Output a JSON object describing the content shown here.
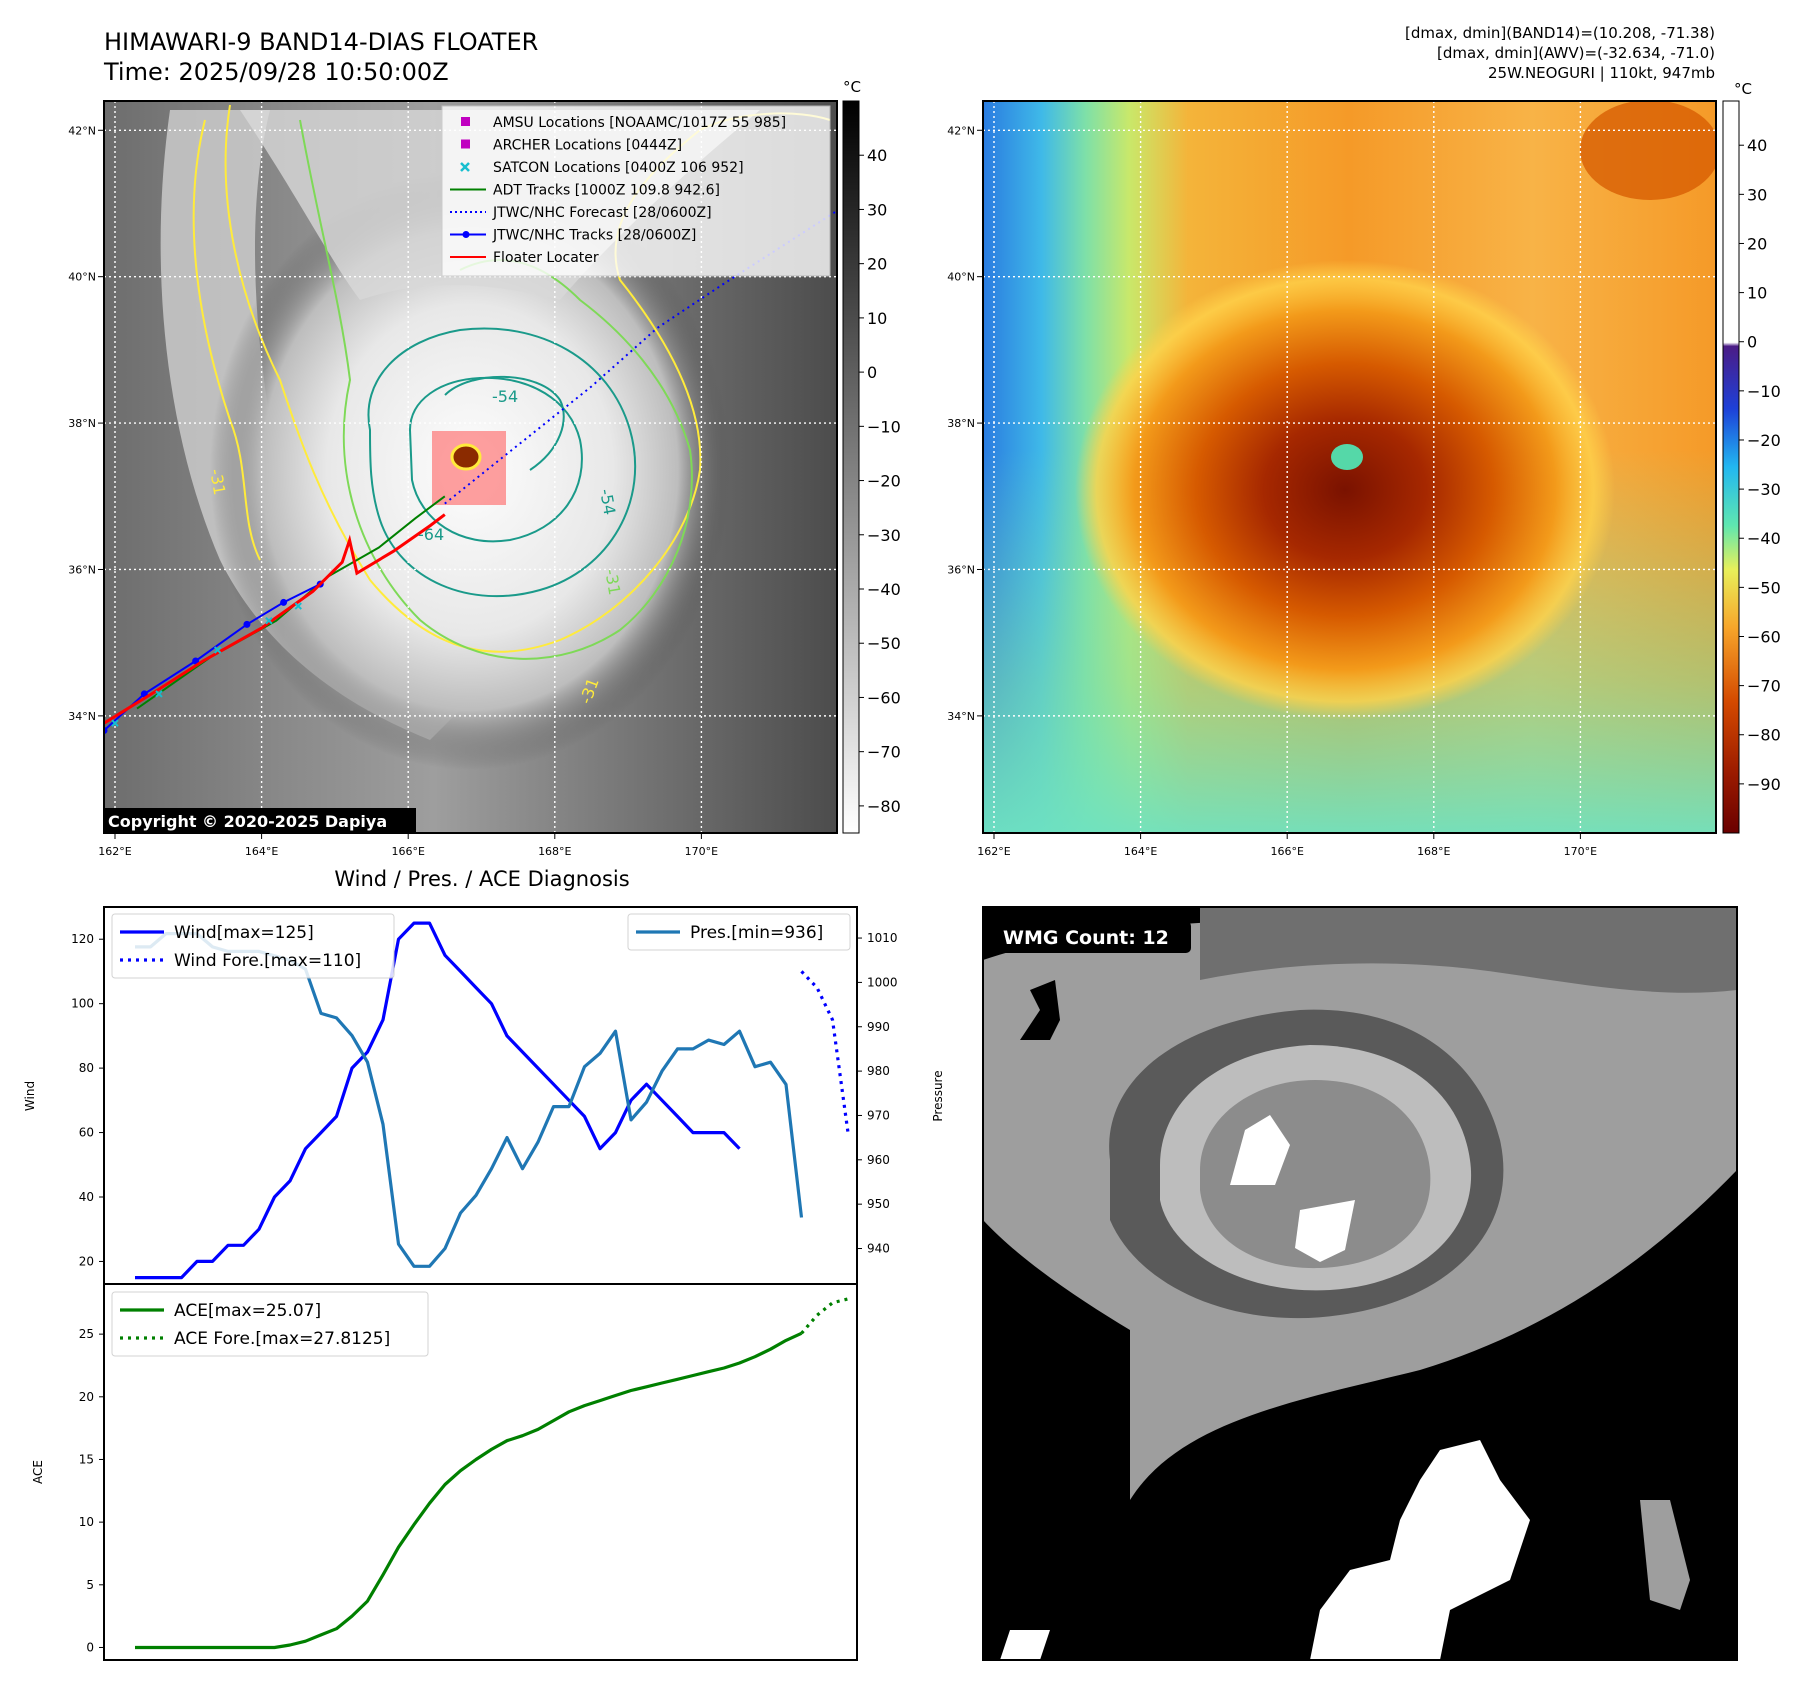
{
  "header": {
    "title": "HIMAWARI-9 BAND14-DIAS FLOATER",
    "time": "Time: 2025/09/28 10:50:00Z",
    "right_lines": [
      "[dmax, dmin](BAND14)=(10.208, -71.38)",
      "[dmax, dmin](AWV)=(-32.634, -71.0)",
      "25W.NEOGURI | 110kt, 947mb"
    ]
  },
  "map_axes": {
    "lat_ticks": [
      "42°N",
      "40°N",
      "38°N",
      "36°N",
      "34°N"
    ],
    "lat_values": [
      42,
      40,
      38,
      36,
      34
    ],
    "lon_ticks": [
      "162°E",
      "164°E",
      "166°E",
      "168°E",
      "170°E"
    ],
    "lon_values": [
      162,
      164,
      166,
      168,
      170
    ],
    "lat_range": [
      32.4,
      42.4
    ],
    "lon_range": [
      161.85,
      171.85
    ]
  },
  "ir_panel": {
    "copyright": "Copyright © 2020-2025 Dapiya",
    "colorbar_unit": "°C",
    "colorbar_ticks": [
      "40",
      "30",
      "20",
      "10",
      "0",
      "−10",
      "−20",
      "−30",
      "−40",
      "−50",
      "−60",
      "−70",
      "−80"
    ],
    "colorbar_values": [
      40,
      30,
      20,
      10,
      0,
      -10,
      -20,
      -30,
      -40,
      -50,
      -60,
      -70,
      -80
    ],
    "colorbar_range": [
      -85,
      50
    ],
    "contour_labels": [
      "-54",
      "-54",
      "-64",
      "-31",
      "-31",
      "-31"
    ],
    "legend": [
      {
        "label": "AMSU Locations [NOAAMC/1017Z 55 985]",
        "marker": "square",
        "color": "#c000c0"
      },
      {
        "label": "ARCHER Locations [0444Z]",
        "marker": "square",
        "color": "#c000c0"
      },
      {
        "label": "SATCON Locations [0400Z 106 952]",
        "marker": "x",
        "color": "#17becf"
      },
      {
        "label": "ADT Tracks [1000Z 109.8 942.6]",
        "marker": "line",
        "color": "#008000"
      },
      {
        "label": "JTWC/NHC Forecast [28/0600Z]",
        "marker": "dotted",
        "color": "#0000ff"
      },
      {
        "label": "JTWC/NHC Tracks [28/0600Z]",
        "marker": "line-dot",
        "color": "#0000ff"
      },
      {
        "label": "Floater Locater",
        "marker": "line",
        "color": "#ff0000"
      }
    ]
  },
  "awv_panel": {
    "colorbar_unit": "°C",
    "colorbar_ticks": [
      "40",
      "30",
      "20",
      "10",
      "0",
      "−10",
      "−20",
      "−30",
      "−40",
      "−50",
      "−60",
      "−70",
      "−80",
      "−90"
    ],
    "colorbar_values": [
      40,
      30,
      20,
      10,
      0,
      -10,
      -20,
      -30,
      -40,
      -50,
      -60,
      -70,
      -80,
      -90
    ],
    "colorbar_range": [
      -100,
      49
    ]
  },
  "wmg_panel": {
    "badge": "WMG Count: 12"
  },
  "chart_data": [
    {
      "type": "line",
      "title": "Wind / Pres. / ACE Diagnosis",
      "ylabel": "Wind",
      "y2label": "Pressure",
      "ylim": [
        13,
        130
      ],
      "y2lim": [
        932,
        1017
      ],
      "yticks": [
        20,
        40,
        60,
        80,
        100,
        120
      ],
      "y2ticks": [
        940,
        950,
        960,
        970,
        980,
        990,
        1000,
        1010
      ],
      "series": [
        {
          "name": "Wind[max=125]",
          "style": "solid",
          "color": "#0000ff",
          "x": [
            0,
            1,
            2,
            3,
            4,
            5,
            6,
            7,
            8,
            9,
            10,
            11,
            12,
            13,
            14,
            15,
            16,
            17,
            18,
            19,
            20,
            21,
            22,
            23,
            24,
            25,
            26,
            27,
            28,
            29,
            30,
            31,
            32,
            33,
            34,
            35,
            36,
            37,
            38,
            39
          ],
          "values": [
            15,
            15,
            15,
            15,
            20,
            20,
            25,
            25,
            30,
            40,
            45,
            55,
            60,
            65,
            80,
            85,
            95,
            120,
            125,
            125,
            115,
            110,
            105,
            100,
            90,
            85,
            80,
            75,
            70,
            65,
            55,
            60,
            70,
            75,
            70,
            65,
            60,
            60,
            60,
            55
          ]
        },
        {
          "name": "Wind Fore.[max=110]",
          "style": "dotted",
          "color": "#0000ff",
          "x": [
            43,
            44,
            45,
            46
          ],
          "values": [
            110,
            105,
            95,
            60
          ]
        },
        {
          "name": "Pres.[min=936]",
          "style": "solid",
          "color": "#1f77b4",
          "axis": "right",
          "x": [
            0,
            1,
            2,
            3,
            4,
            5,
            6,
            7,
            8,
            9,
            10,
            11,
            12,
            13,
            14,
            15,
            16,
            17,
            18,
            19,
            20,
            21,
            22,
            23,
            24,
            25,
            26,
            27,
            28,
            29,
            30,
            31,
            32,
            33,
            34,
            35,
            36,
            37,
            38,
            39,
            40,
            41,
            42,
            43
          ],
          "values": [
            1008,
            1008,
            1011,
            1011,
            1011,
            1008,
            1007,
            1007,
            1007,
            1006,
            1005,
            1003,
            993,
            992,
            988,
            982,
            968,
            941,
            936,
            936,
            940,
            948,
            952,
            958,
            965,
            958,
            964,
            972,
            972,
            981,
            984,
            989,
            969,
            973,
            980,
            985,
            985,
            987,
            986,
            989,
            981,
            982,
            977,
            947
          ]
        }
      ],
      "legend": [
        {
          "label": "Wind[max=125]",
          "style": "solid",
          "color": "#0000ff"
        },
        {
          "label": "Wind Fore.[max=110]",
          "style": "dotted",
          "color": "#0000ff"
        },
        {
          "label": "Pres.[min=936]",
          "style": "solid",
          "color": "#1f77b4"
        }
      ]
    },
    {
      "type": "line",
      "ylabel": "ACE",
      "ylim": [
        -1,
        29
      ],
      "yticks": [
        0,
        5,
        10,
        15,
        20,
        25
      ],
      "series": [
        {
          "name": "ACE[max=25.07]",
          "style": "solid",
          "color": "#008000",
          "x": [
            0,
            3,
            6,
            9,
            10,
            11,
            12,
            13,
            14,
            15,
            16,
            17,
            18,
            19,
            20,
            21,
            22,
            23,
            24,
            25,
            26,
            27,
            28,
            29,
            30,
            31,
            32,
            33,
            34,
            35,
            36,
            37,
            38,
            39,
            40,
            41,
            42,
            43
          ],
          "values": [
            0,
            0,
            0,
            0,
            0.2,
            0.5,
            1,
            1.5,
            2.5,
            3.7,
            5.8,
            8,
            9.8,
            11.5,
            13,
            14.1,
            15,
            15.8,
            16.5,
            16.9,
            17.4,
            18.1,
            18.8,
            19.3,
            19.7,
            20.1,
            20.5,
            20.8,
            21.1,
            21.4,
            21.7,
            22,
            22.3,
            22.7,
            23.2,
            23.8,
            24.5,
            25.07
          ]
        },
        {
          "name": "ACE Fore.[max=27.8125]",
          "style": "dotted",
          "color": "#008000",
          "x": [
            43,
            44,
            45,
            46
          ],
          "values": [
            25.07,
            26.5,
            27.5,
            27.8125
          ]
        }
      ],
      "legend": [
        {
          "label": "ACE[max=25.07]",
          "style": "solid",
          "color": "#008000"
        },
        {
          "label": "ACE Fore.[max=27.8125]",
          "style": "dotted",
          "color": "#008000"
        }
      ]
    }
  ],
  "colors": {
    "ir_contour_yellow": "#ffeb3b",
    "ir_contour_green": "#7ed957",
    "ir_contour_teal": "#1a9a8a",
    "forecast": "#0000ff",
    "floater": "#ff0000"
  }
}
